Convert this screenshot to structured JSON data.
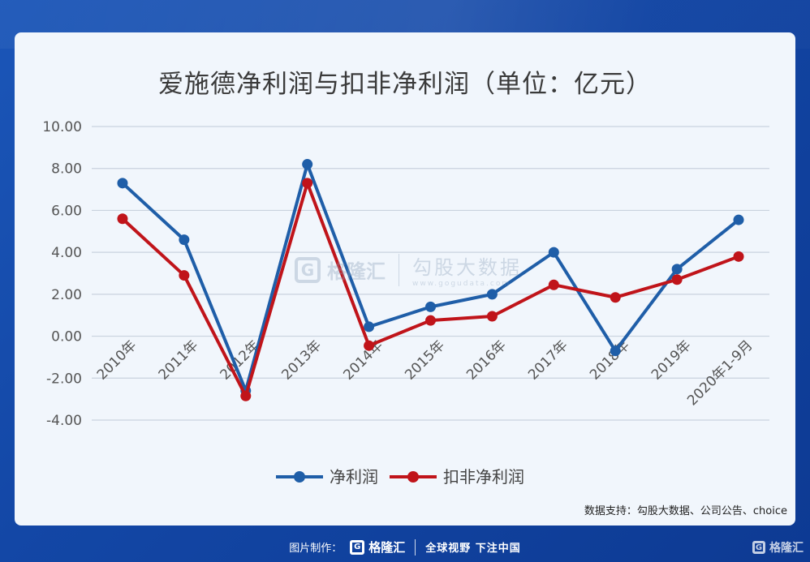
{
  "chart_data": {
    "type": "line",
    "title": "爱施德净利润与扣非净利润（单位：亿元）",
    "categories": [
      "2010年",
      "2011年",
      "2012年",
      "2013年",
      "2014年",
      "2015年",
      "2016年",
      "2017年",
      "2018年",
      "2019年",
      "2020年1-9月"
    ],
    "series": [
      {
        "name": "净利润",
        "color": "#1f5ea8",
        "values": [
          7.3,
          4.6,
          -2.6,
          8.2,
          0.45,
          1.4,
          2.0,
          4.0,
          -0.7,
          3.2,
          5.55
        ]
      },
      {
        "name": "扣非净利润",
        "color": "#c0141a",
        "values": [
          5.6,
          2.9,
          -2.85,
          7.3,
          -0.45,
          0.75,
          0.95,
          2.45,
          1.85,
          2.7,
          3.8
        ]
      }
    ],
    "y_ticks": [
      "10.00",
      "8.00",
      "6.00",
      "4.00",
      "2.00",
      "0.00",
      "-2.00",
      "-4.00"
    ],
    "ylim": [
      -4,
      10
    ],
    "grid": true,
    "legend_position": "bottom"
  },
  "watermark": {
    "brand": "格隆汇",
    "name": "勾股大数据",
    "url": "www.gogudata.com",
    "logo_letter": "G"
  },
  "source": "数据支持：勾股大数据、公司公告、choice",
  "footer": {
    "made_by": "图片制作：",
    "brand": "格隆汇",
    "slogan": "全球视野 下注中国",
    "logo_letter": "G"
  },
  "corner": {
    "brand": "格隆汇",
    "logo_letter": "G"
  }
}
